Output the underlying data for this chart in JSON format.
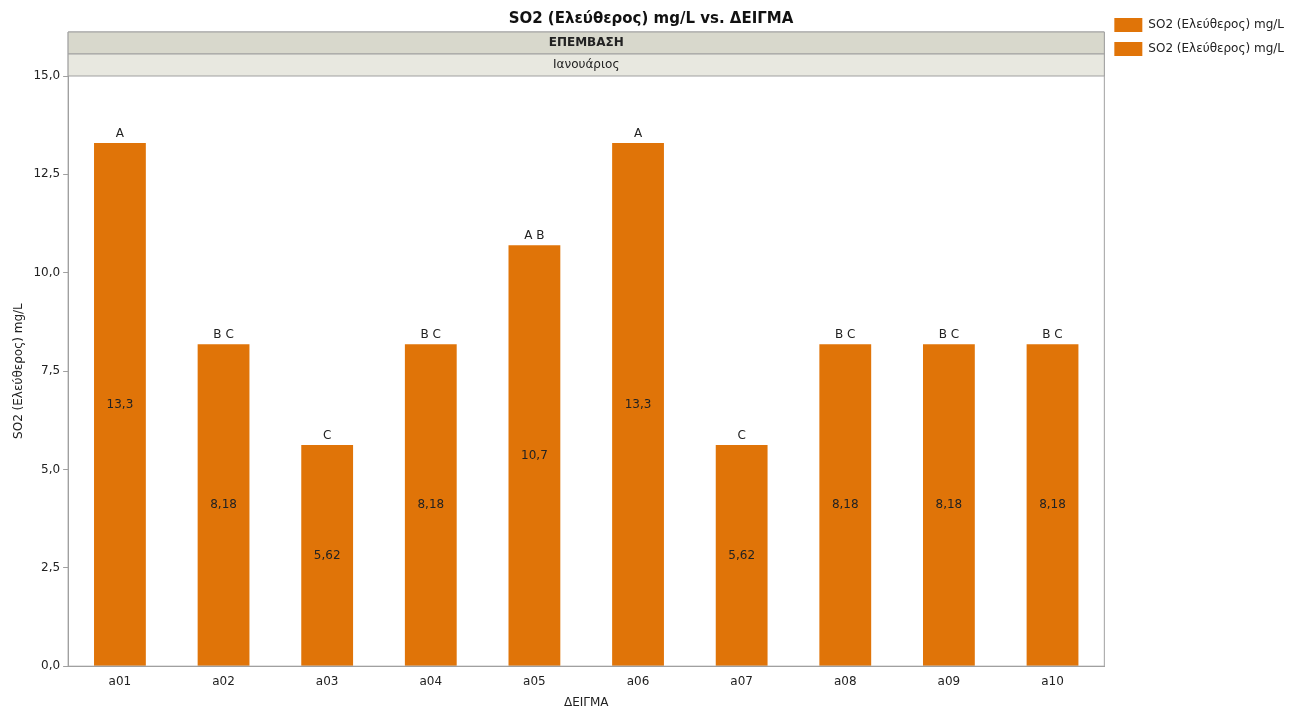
{
  "chart_data": {
    "type": "bar",
    "title": "SO2 (Ελεύθερος) mg/L vs. ΔΕΙΓΜΑ",
    "xlabel": "ΔΕΙΓΜΑ",
    "ylabel": "SO2 (Ελεύθερος) mg/L",
    "categories": [
      "a01",
      "a02",
      "a03",
      "a04",
      "a05",
      "a06",
      "a07",
      "a08",
      "a09",
      "a10"
    ],
    "series": [
      {
        "name": "SO2 (Ελεύθερος) mg/L",
        "color": "#e07408",
        "values": [
          13.3,
          8.18,
          5.62,
          8.18,
          10.7,
          13.3,
          5.62,
          8.18,
          8.18,
          8.18
        ],
        "value_labels": [
          "13,3",
          "8,18",
          "5,62",
          "8,18",
          "10,7",
          "13,3",
          "5,62",
          "8,18",
          "8,18",
          "8,18"
        ]
      },
      {
        "name": "SO2 (Ελεύθερος) mg/L",
        "color": "#e07408",
        "values": [
          null,
          null,
          null,
          null,
          null,
          null,
          null,
          null,
          null,
          null
        ]
      }
    ],
    "ylim": [
      0,
      15
    ],
    "yticks": [
      {
        "value": 0,
        "label": "0,0"
      },
      {
        "value": 2.5,
        "label": "2,5"
      },
      {
        "value": 5,
        "label": "5,0"
      },
      {
        "value": 7.5,
        "label": "7,5"
      },
      {
        "value": 10,
        "label": "10,0"
      },
      {
        "value": 12.5,
        "label": "12,5"
      },
      {
        "value": 15,
        "label": "15,0"
      }
    ],
    "grid": false,
    "legend": "top right",
    "annotations": [
      "ΕΠΕΜΒΑΣΗ",
      "Ιανουάριος",
      {
        "text": "A",
        "x": "a01",
        "y": 13.3
      },
      {
        "text": "B C",
        "x": "a02",
        "y": 8.18
      },
      {
        "text": "C",
        "x": "a03",
        "y": 5.62
      },
      {
        "text": "B C",
        "x": "a04",
        "y": 8.18
      },
      {
        "text": "A B",
        "x": "a05",
        "y": 10.7
      },
      {
        "text": "A",
        "x": "a06",
        "y": 13.3
      },
      {
        "text": "C",
        "x": "a07",
        "y": 5.62
      },
      {
        "text": "B C",
        "x": "a08",
        "y": 8.18
      },
      {
        "text": "B C",
        "x": "a09",
        "y": 8.18
      },
      {
        "text": "B C",
        "x": "a10",
        "y": 8.18
      }
    ]
  }
}
